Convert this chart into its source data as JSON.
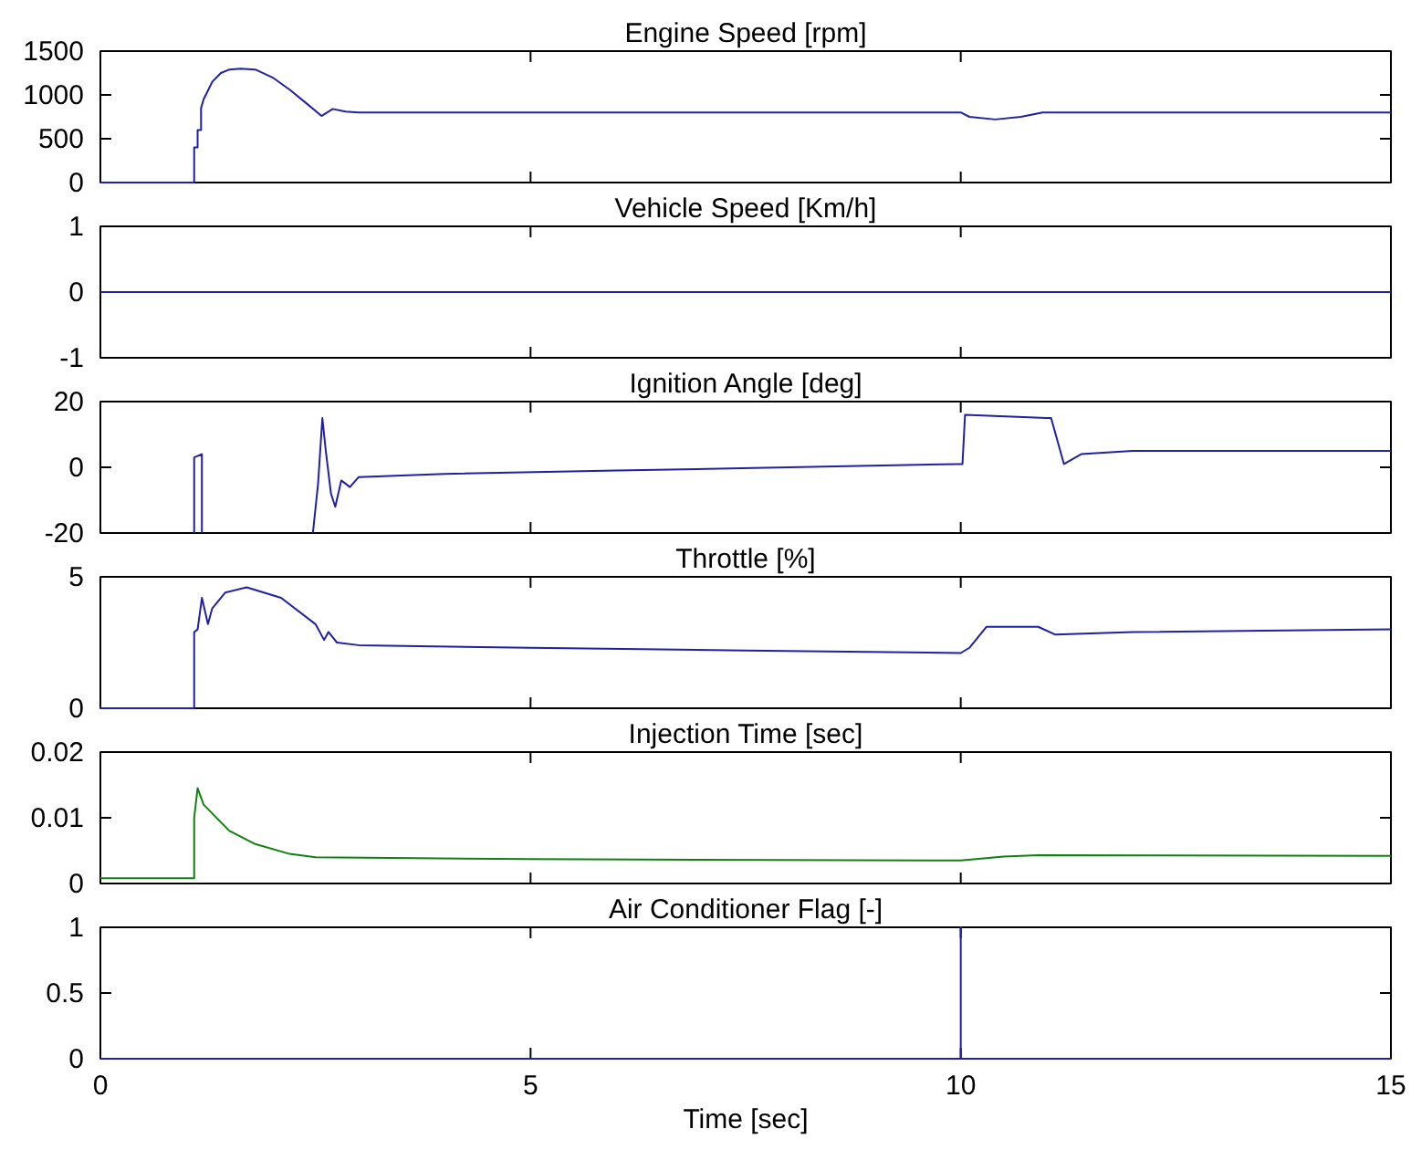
{
  "chart_data": [
    {
      "type": "line",
      "title": "Engine Speed [rpm]",
      "color": "#2020a0",
      "xlim": [
        0,
        15
      ],
      "xticks": [
        0,
        5,
        10,
        15
      ],
      "ylim": [
        0,
        1500
      ],
      "yticks": [
        0,
        500,
        1000,
        1500
      ],
      "tick_labels": "y",
      "x": [
        0,
        1.09,
        1.09,
        1.13,
        1.13,
        1.17,
        1.17,
        1.2,
        1.25,
        1.3,
        1.4,
        1.5,
        1.63,
        1.8,
        2.0,
        2.2,
        2.4,
        2.57,
        2.7,
        2.85,
        3.0,
        10.0,
        10.1,
        10.4,
        10.7,
        10.95,
        15
      ],
      "values": [
        0,
        0,
        400,
        400,
        600,
        600,
        850,
        950,
        1050,
        1150,
        1250,
        1290,
        1300,
        1290,
        1200,
        1060,
        900,
        760,
        840,
        810,
        800,
        800,
        750,
        720,
        750,
        800,
        800
      ]
    },
    {
      "type": "line",
      "title": "Vehicle Speed [Km/h]",
      "color": "#2020a0",
      "xlim": [
        0,
        15
      ],
      "xticks": [
        0,
        5,
        10,
        15
      ],
      "ylim": [
        -1,
        1
      ],
      "yticks": [
        -1,
        0,
        1
      ],
      "tick_labels": "y",
      "x": [
        0,
        15
      ],
      "values": [
        0,
        0
      ]
    },
    {
      "type": "line",
      "title": "Ignition Angle [deg]",
      "color": "#2020a0",
      "xlim": [
        0,
        15
      ],
      "xticks": [
        0,
        5,
        10,
        15
      ],
      "ylim": [
        -20,
        20
      ],
      "yticks": [
        -20,
        0,
        20
      ],
      "tick_labels": "y",
      "x": [
        1.09,
        1.09,
        1.18,
        1.18,
        1.5,
        2.47,
        2.53,
        2.58,
        2.62,
        2.68,
        2.73,
        2.8,
        2.9,
        3.0,
        4.0,
        6.0,
        8.0,
        9.95,
        10.02,
        10.05,
        11.0,
        11.05,
        11.2,
        11.4,
        12.0,
        15
      ],
      "values": [
        -20,
        3,
        4,
        -20,
        null,
        -20,
        -5,
        15,
        5,
        -8,
        -12,
        -4,
        -6,
        -3,
        -2,
        -1,
        0,
        1,
        1,
        16,
        15,
        15,
        1,
        4,
        5,
        5
      ]
    },
    {
      "type": "line",
      "title": "Throttle [%]",
      "color": "#2020a0",
      "xlim": [
        0,
        15
      ],
      "xticks": [
        0,
        5,
        10,
        15
      ],
      "ylim": [
        0,
        5
      ],
      "yticks": [
        0,
        5
      ],
      "tick_labels": "y",
      "x": [
        0,
        1.09,
        1.09,
        1.13,
        1.18,
        1.25,
        1.3,
        1.45,
        1.7,
        2.1,
        2.5,
        2.6,
        2.65,
        2.75,
        3.0,
        5.0,
        7.5,
        10.0,
        10.1,
        10.3,
        10.9,
        11.1,
        12.0,
        15
      ],
      "values": [
        0,
        0,
        2.9,
        3.0,
        4.2,
        3.2,
        3.8,
        4.4,
        4.6,
        4.2,
        3.2,
        2.6,
        2.9,
        2.5,
        2.4,
        2.3,
        2.2,
        2.1,
        2.3,
        3.1,
        3.1,
        2.8,
        2.9,
        3.0
      ]
    },
    {
      "type": "line",
      "title": "Injection Time [sec]",
      "color": "#108010",
      "xlim": [
        0,
        15
      ],
      "xticks": [
        0,
        5,
        10,
        15
      ],
      "ylim": [
        0,
        0.02
      ],
      "yticks": [
        0,
        0.01,
        0.02
      ],
      "tick_labels": "y",
      "x": [
        0,
        1.09,
        1.09,
        1.13,
        1.2,
        1.5,
        1.8,
        2.2,
        2.5,
        5.0,
        10.0,
        10.5,
        10.9,
        15
      ],
      "values": [
        0.0008,
        0.0008,
        0.01,
        0.0145,
        0.012,
        0.008,
        0.006,
        0.0045,
        0.004,
        0.0037,
        0.0035,
        0.0041,
        0.0043,
        0.0042
      ]
    },
    {
      "type": "line",
      "title": "Air Conditioner Flag [-]",
      "xlabel": "Time [sec]",
      "color": "#2020a0",
      "xlim": [
        0,
        15
      ],
      "xticks": [
        0,
        5,
        10,
        15
      ],
      "ylim": [
        0,
        1
      ],
      "yticks": [
        0,
        0.5,
        1
      ],
      "x": [
        0,
        10,
        10,
        10,
        15
      ],
      "values": [
        0,
        0,
        1,
        0,
        0
      ]
    }
  ]
}
